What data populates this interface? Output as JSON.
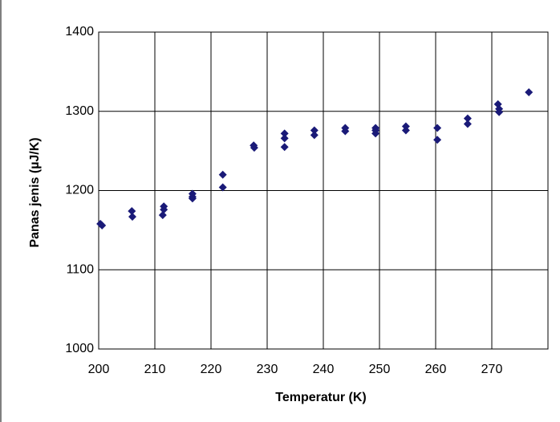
{
  "chart_data": {
    "type": "scatter",
    "x_label": "Temperatur (K)",
    "y_label": "Panas jenis (µJ/K)",
    "x": [
      200.3,
      200.6,
      205.9,
      206.0,
      211.6,
      211.6,
      211.4,
      216.7,
      216.7,
      216.7,
      222.1,
      222.1,
      227.6,
      227.7,
      233.1,
      233.1,
      233.1,
      238.4,
      238.4,
      243.9,
      243.9,
      249.3,
      249.3,
      249.3,
      254.7,
      254.7,
      260.3,
      260.3,
      265.7,
      265.7,
      271.1,
      271.3,
      271.3,
      276.6
    ],
    "values": [
      1158,
      1156,
      1174,
      1167,
      1180,
      1176,
      1169,
      1196,
      1192,
      1190,
      1220,
      1204,
      1257,
      1254,
      1272,
      1266,
      1255,
      1276,
      1270,
      1279,
      1275,
      1279,
      1276,
      1272,
      1281,
      1276,
      1279,
      1264,
      1291,
      1284,
      1309,
      1303,
      1299,
      1324
    ],
    "color": "#1a1a78",
    "xlim": [
      200,
      280
    ],
    "xticks": [
      200,
      210,
      220,
      230,
      240,
      250,
      260,
      270
    ],
    "ylim": [
      1000,
      1400
    ],
    "yticks": [
      1000,
      1100,
      1200,
      1300,
      1400
    ],
    "grid": true
  }
}
